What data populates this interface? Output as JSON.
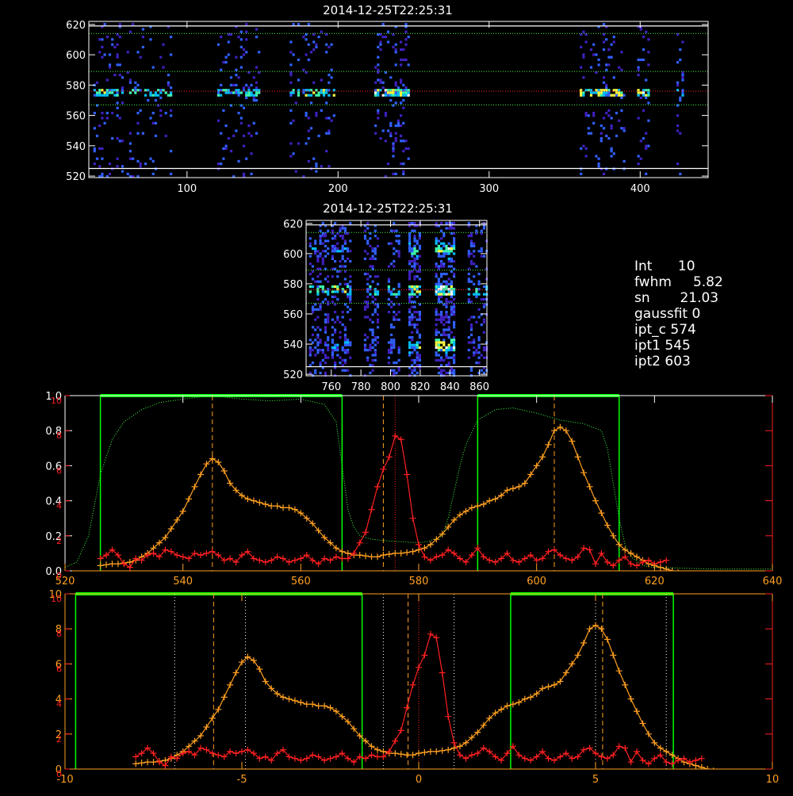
{
  "colors": {
    "background": "#000000",
    "axis": "#ffffff",
    "axis_orange": "#ffa020",
    "axis_red": "#ff2020",
    "green": "#00ff00",
    "green_dotted": "#40ff40",
    "orange_series": "#ffa020",
    "red_series": "#ff2020",
    "red_dotted": "#ff2020",
    "white_dotted": "#ffffff",
    "colormap": [
      "#000000",
      "#2a0060",
      "#4020c0",
      "#3060ff",
      "#00c0ff",
      "#40ffb0",
      "#ffff40",
      "#ffffff"
    ]
  },
  "chart_data": [
    {
      "id": "image-top",
      "type": "heatmap",
      "title": "2014-12-25T22:25:31",
      "xlim": [
        35,
        445
      ],
      "ylim": [
        519,
        622
      ],
      "xticks": [
        100,
        200,
        300,
        400
      ],
      "xtick_labels": [
        "100",
        "200",
        "300",
        "400"
      ],
      "yticks": [
        520,
        540,
        560,
        580,
        600,
        620
      ],
      "ytick_labels": [
        "520",
        "540",
        "560",
        "580",
        "600",
        "620"
      ],
      "white_rows": [
        525,
        619
      ],
      "green_dotted_rows": [
        567,
        589,
        614
      ],
      "red_dotted_row": 576,
      "core_row": 576,
      "bands": [
        {
          "x0": 38,
          "x1": 58,
          "w": 0.8
        },
        {
          "x0": 60,
          "x1": 90,
          "w": 0.55
        },
        {
          "x0": 120,
          "x1": 147,
          "w": 0.6
        },
        {
          "x0": 168,
          "x1": 198,
          "w": 0.65
        },
        {
          "x0": 224,
          "x1": 246,
          "w": 1.0
        },
        {
          "x0": 360,
          "x1": 390,
          "w": 0.8
        },
        {
          "x0": 398,
          "x1": 406,
          "w": 0.9
        },
        {
          "x0": 424,
          "x1": 428,
          "w": 0.5
        }
      ]
    },
    {
      "id": "image-zoom",
      "type": "heatmap",
      "title": "2014-12-25T22:25:31",
      "xlim": [
        743,
        865
      ],
      "ylim": [
        519,
        622
      ],
      "xticks": [
        760,
        780,
        800,
        820,
        840,
        860
      ],
      "xtick_labels": [
        "760",
        "780",
        "800",
        "820",
        "840",
        "860"
      ],
      "yticks": [
        520,
        540,
        560,
        580,
        600,
        620
      ],
      "ytick_labels": [
        "520",
        "540",
        "560",
        "580",
        "600",
        "620"
      ],
      "white_rows": [
        525,
        619
      ],
      "green_dotted_rows": [
        567,
        589,
        614
      ],
      "red_dotted_row": 576,
      "core_row": 576,
      "bands": [
        {
          "x0": 745,
          "x1": 758,
          "w": 0.55
        },
        {
          "x0": 760,
          "x1": 772,
          "w": 0.65
        },
        {
          "x0": 782,
          "x1": 792,
          "w": 0.5
        },
        {
          "x0": 798,
          "x1": 806,
          "w": 0.45
        },
        {
          "x0": 812,
          "x1": 820,
          "w": 0.85
        },
        {
          "x0": 830,
          "x1": 842,
          "w": 1.0
        },
        {
          "x0": 852,
          "x1": 864,
          "w": 0.45
        }
      ],
      "hot_rows": [
        540,
        603
      ]
    },
    {
      "id": "profile-top",
      "type": "line",
      "xlim": [
        520,
        640
      ],
      "ylim": [
        0,
        1.0
      ],
      "xticks": [
        520,
        540,
        560,
        580,
        600,
        620,
        640
      ],
      "xtick_labels": [
        "520",
        "540",
        "560",
        "580",
        "600",
        "620",
        "640"
      ],
      "yticks": [
        0.0,
        0.2,
        0.4,
        0.6,
        0.8,
        1.0
      ],
      "ytick_labels": [
        "0.0",
        "0.2",
        "0.4",
        "0.6",
        "0.8",
        "1.0"
      ],
      "right_ylim": [
        0,
        10
      ],
      "right_yticks": [
        0,
        2,
        4,
        6,
        8,
        10
      ],
      "right_ytick_labels": [
        "0",
        "2",
        "4",
        "6",
        "8",
        "10"
      ],
      "green_boxes": [
        [
          526,
          567
        ],
        [
          590,
          614
        ]
      ],
      "orange_dashed": [
        545,
        603
      ],
      "orange_dashed_center": 574,
      "red_dotted": 576,
      "filter_curve": {
        "x": [
          520,
          522,
          524,
          526,
          528,
          530,
          533,
          536,
          540,
          545,
          550,
          555,
          560,
          564,
          566,
          567,
          568,
          569,
          570,
          572,
          575,
          580,
          582,
          584,
          585,
          586,
          587,
          588,
          590,
          593,
          596,
          600,
          604,
          608,
          611,
          612,
          613,
          614,
          615,
          616,
          618,
          620,
          625,
          630,
          636,
          640
        ],
        "y": [
          0.02,
          0.05,
          0.2,
          0.55,
          0.75,
          0.85,
          0.92,
          0.96,
          0.98,
          1.0,
          0.98,
          0.97,
          0.98,
          0.95,
          0.85,
          0.6,
          0.35,
          0.25,
          0.2,
          0.18,
          0.17,
          0.16,
          0.17,
          0.2,
          0.3,
          0.45,
          0.6,
          0.72,
          0.86,
          0.92,
          0.93,
          0.9,
          0.86,
          0.84,
          0.8,
          0.7,
          0.5,
          0.3,
          0.15,
          0.08,
          0.03,
          0.02,
          0.015,
          0.01,
          0.01,
          0.01
        ]
      }
    },
    {
      "id": "profile-bottom",
      "type": "line",
      "xlim": [
        -10,
        10
      ],
      "ylim": [
        0,
        10
      ],
      "xticks": [
        -10,
        -5,
        0,
        5,
        10
      ],
      "xtick_labels": [
        "-10",
        "-5",
        "0",
        "5",
        "10"
      ],
      "yticks": [
        0,
        2,
        4,
        6,
        8,
        10
      ],
      "ytick_labels": [
        "0",
        "2",
        "4",
        "6",
        "8",
        "10"
      ],
      "right_ylim": [
        0,
        10
      ],
      "right_yticks": [
        0,
        2,
        4,
        6,
        8,
        10
      ],
      "right_ytick_labels": [
        "0",
        "2",
        "4",
        "6",
        "8",
        "10"
      ],
      "green_boxes": [
        [
          -9.7,
          -1.6
        ],
        [
          2.6,
          7.2
        ]
      ],
      "orange_dashed": [
        -5.8,
        5.2,
        -0.3
      ],
      "white_dotted": [
        -6.9,
        -4.9,
        -1.0,
        1.0,
        5.0,
        7.0
      ],
      "red_dotted": 0.0,
      "x_shift": 574,
      "x_scale": 6.0
    }
  ],
  "series": {
    "x": [
      526,
      527,
      528,
      529,
      530,
      531,
      532,
      533,
      534,
      535,
      536,
      537,
      538,
      539,
      540,
      541,
      542,
      543,
      544,
      545,
      546,
      547,
      548,
      549,
      550,
      551,
      552,
      553,
      554,
      555,
      556,
      557,
      558,
      559,
      560,
      561,
      562,
      563,
      564,
      565,
      566,
      567,
      568,
      569,
      570,
      571,
      572,
      573,
      574,
      575,
      576,
      577,
      578,
      579,
      580,
      581,
      582,
      583,
      584,
      585,
      586,
      587,
      588,
      589,
      590,
      591,
      592,
      593,
      594,
      595,
      596,
      597,
      598,
      599,
      600,
      601,
      602,
      603,
      604,
      605,
      606,
      607,
      608,
      609,
      610,
      611,
      612,
      613,
      614,
      615,
      616,
      617,
      618,
      619,
      620,
      621,
      622,
      623,
      624
    ],
    "orange": [
      0.3,
      0.35,
      0.4,
      0.4,
      0.45,
      0.5,
      0.6,
      0.8,
      1.0,
      1.3,
      1.6,
      1.9,
      2.4,
      2.9,
      3.4,
      4.1,
      4.8,
      5.5,
      6.1,
      6.4,
      6.2,
      5.7,
      5.0,
      4.6,
      4.3,
      4.1,
      4.0,
      3.9,
      3.8,
      3.7,
      3.7,
      3.6,
      3.6,
      3.5,
      3.3,
      3.0,
      2.7,
      2.3,
      1.9,
      1.6,
      1.3,
      1.1,
      1.0,
      0.9,
      0.9,
      0.85,
      0.8,
      0.8,
      0.9,
      0.95,
      1.0,
      1.0,
      1.05,
      1.1,
      1.2,
      1.3,
      1.5,
      1.8,
      2.1,
      2.5,
      2.9,
      3.2,
      3.4,
      3.6,
      3.7,
      3.8,
      4.0,
      4.1,
      4.3,
      4.6,
      4.7,
      4.8,
      5.0,
      5.5,
      6.0,
      6.5,
      7.2,
      8.0,
      8.2,
      8.0,
      7.4,
      6.5,
      5.6,
      4.8,
      4.0,
      3.3,
      2.6,
      2.0,
      1.5,
      1.2,
      1.0,
      0.8,
      0.6,
      0.4,
      0.3,
      0.2,
      0.1,
      0.0,
      -0.1
    ],
    "red_x": [
      526,
      527,
      528,
      529,
      530,
      531,
      532,
      533,
      534,
      535,
      536,
      537,
      538,
      539,
      540,
      541,
      542,
      543,
      544,
      545,
      546,
      547,
      548,
      549,
      550,
      551,
      552,
      553,
      554,
      555,
      556,
      557,
      558,
      559,
      560,
      561,
      562,
      563,
      564,
      565,
      566,
      567,
      568,
      569,
      570,
      571,
      572,
      573,
      574,
      575,
      576,
      577,
      578,
      579,
      580,
      581,
      582,
      583,
      584,
      585,
      586,
      587,
      588,
      589,
      590,
      591,
      592,
      593,
      594,
      595,
      596,
      597,
      598,
      599,
      600,
      601,
      602,
      603,
      604,
      605,
      606,
      607,
      608,
      609,
      610,
      611,
      612,
      613,
      614,
      615,
      616,
      617,
      618,
      619,
      620,
      621,
      622
    ],
    "red": [
      0.7,
      0.9,
      1.2,
      0.9,
      0.4,
      0.2,
      0.7,
      0.6,
      0.9,
      1.0,
      0.8,
      1.2,
      1.1,
      0.9,
      0.8,
      0.7,
      1.0,
      0.9,
      1.0,
      1.1,
      0.9,
      0.6,
      0.7,
      0.5,
      0.9,
      1.1,
      0.7,
      0.6,
      0.5,
      0.6,
      0.8,
      0.7,
      0.5,
      0.6,
      0.7,
      0.9,
      0.6,
      0.4,
      0.7,
      0.6,
      0.8,
      0.7,
      0.7,
      1.0,
      1.6,
      2.2,
      3.5,
      4.8,
      5.8,
      6.5,
      7.7,
      7.5,
      5.5,
      3.0,
      1.5,
      0.8,
      0.6,
      0.8,
      0.9,
      1.2,
      1.0,
      0.7,
      0.5,
      0.9,
      1.3,
      0.8,
      0.6,
      0.5,
      0.7,
      1.0,
      0.6,
      0.5,
      0.7,
      0.9,
      0.6,
      0.7,
      1.1,
      1.2,
      0.9,
      0.7,
      0.6,
      0.8,
      1.3,
      1.2,
      0.4,
      1.0,
      0.5,
      0.3,
      0.6,
      0.8,
      0.4,
      0.3,
      0.5,
      0.6,
      0.4,
      0.5,
      0.6
    ]
  },
  "info": {
    "lines": [
      {
        "key": "Int",
        "value": "10",
        "text": "Int      10"
      },
      {
        "key": "fwhm",
        "value": "5.82",
        "text": "fwhm     5.82"
      },
      {
        "key": "sn",
        "value": "21.03",
        "text": "sn       21.03"
      },
      {
        "key": "gaussfit",
        "value": "0",
        "text": "gaussfit 0"
      },
      {
        "key": "ipt_c",
        "value": "574",
        "text": "ipt_c 574"
      },
      {
        "key": "ipt1",
        "value": "545",
        "text": "ipt1 545"
      },
      {
        "key": "ipt2",
        "value": "603",
        "text": "ipt2 603"
      }
    ]
  }
}
